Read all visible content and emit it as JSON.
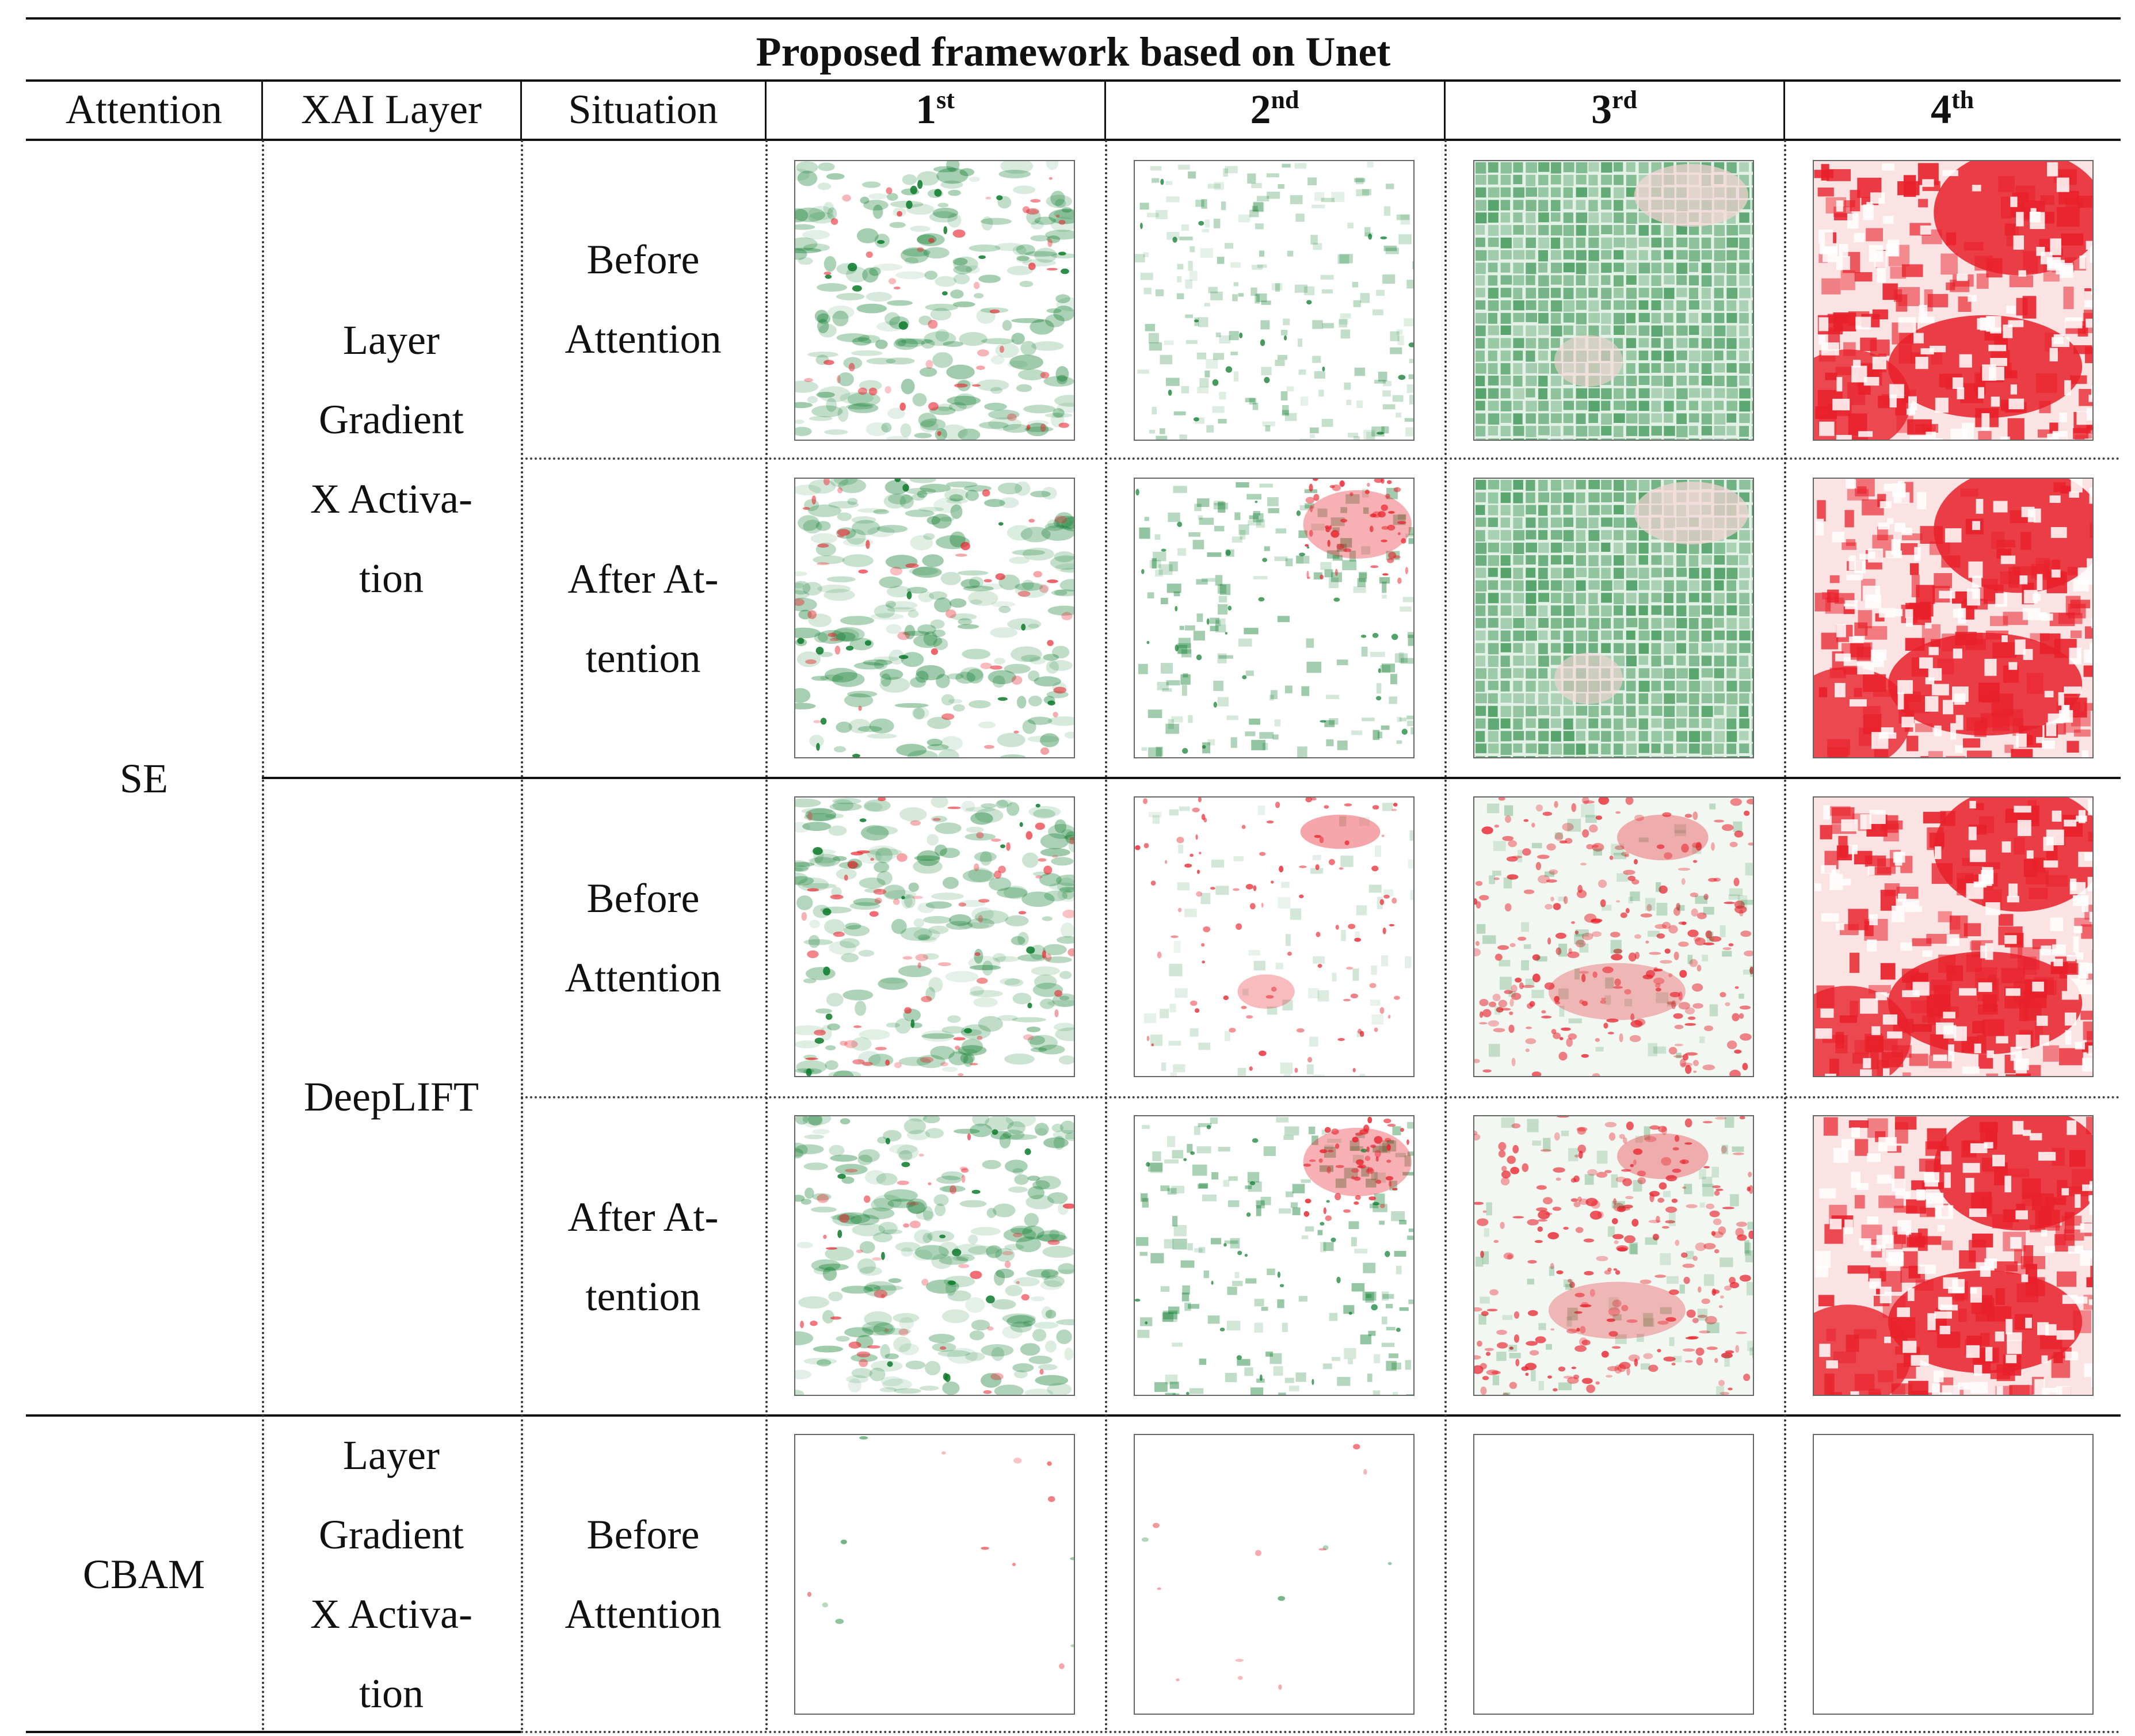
{
  "table": {
    "title": "Proposed framework based on Unet",
    "headers": {
      "attention": "Attention",
      "xai_layer": "XAI Layer",
      "situation": "Situation",
      "stages": [
        {
          "num": "1",
          "suffix": "st"
        },
        {
          "num": "2",
          "suffix": "nd"
        },
        {
          "num": "3",
          "suffix": "rd"
        },
        {
          "num": "4",
          "suffix": "th"
        }
      ]
    },
    "attention_groups": [
      {
        "name": "SE"
      },
      {
        "name": "CBAM"
      }
    ],
    "xai_layers": [
      {
        "lines": [
          "Layer",
          "Gradient",
          "X Activa-",
          "tion"
        ]
      },
      {
        "lines": [
          "DeepLIFT"
        ]
      },
      {
        "lines": [
          "Layer",
          "Gradient",
          "X Activa-",
          "tion"
        ]
      }
    ],
    "situations": [
      {
        "lines": [
          "Before",
          "Attention"
        ]
      },
      {
        "lines": [
          "After At-",
          "tention"
        ]
      },
      {
        "lines": [
          "Before",
          "Attention"
        ]
      },
      {
        "lines": [
          "After At-",
          "tention"
        ]
      },
      {
        "lines": [
          "Before",
          "Attention"
        ]
      }
    ],
    "attribution_maps": [
      [
        "green-speckle",
        "light-green",
        "green-grid",
        "red-blocks"
      ],
      [
        "green-speckle",
        "green-red-corner",
        "green-grid",
        "red-blocks"
      ],
      [
        "green-speckle-red",
        "sparse-red",
        "red-dense",
        "red-blocks"
      ],
      [
        "green-speckle",
        "green-red-corner",
        "red-dense",
        "red-blocks"
      ],
      [
        "nearly-empty",
        "nearly-empty",
        "empty",
        "empty"
      ]
    ],
    "colors": {
      "positive": "#e8202a",
      "negative": "#0a7a2a",
      "rule": "#111111"
    }
  }
}
